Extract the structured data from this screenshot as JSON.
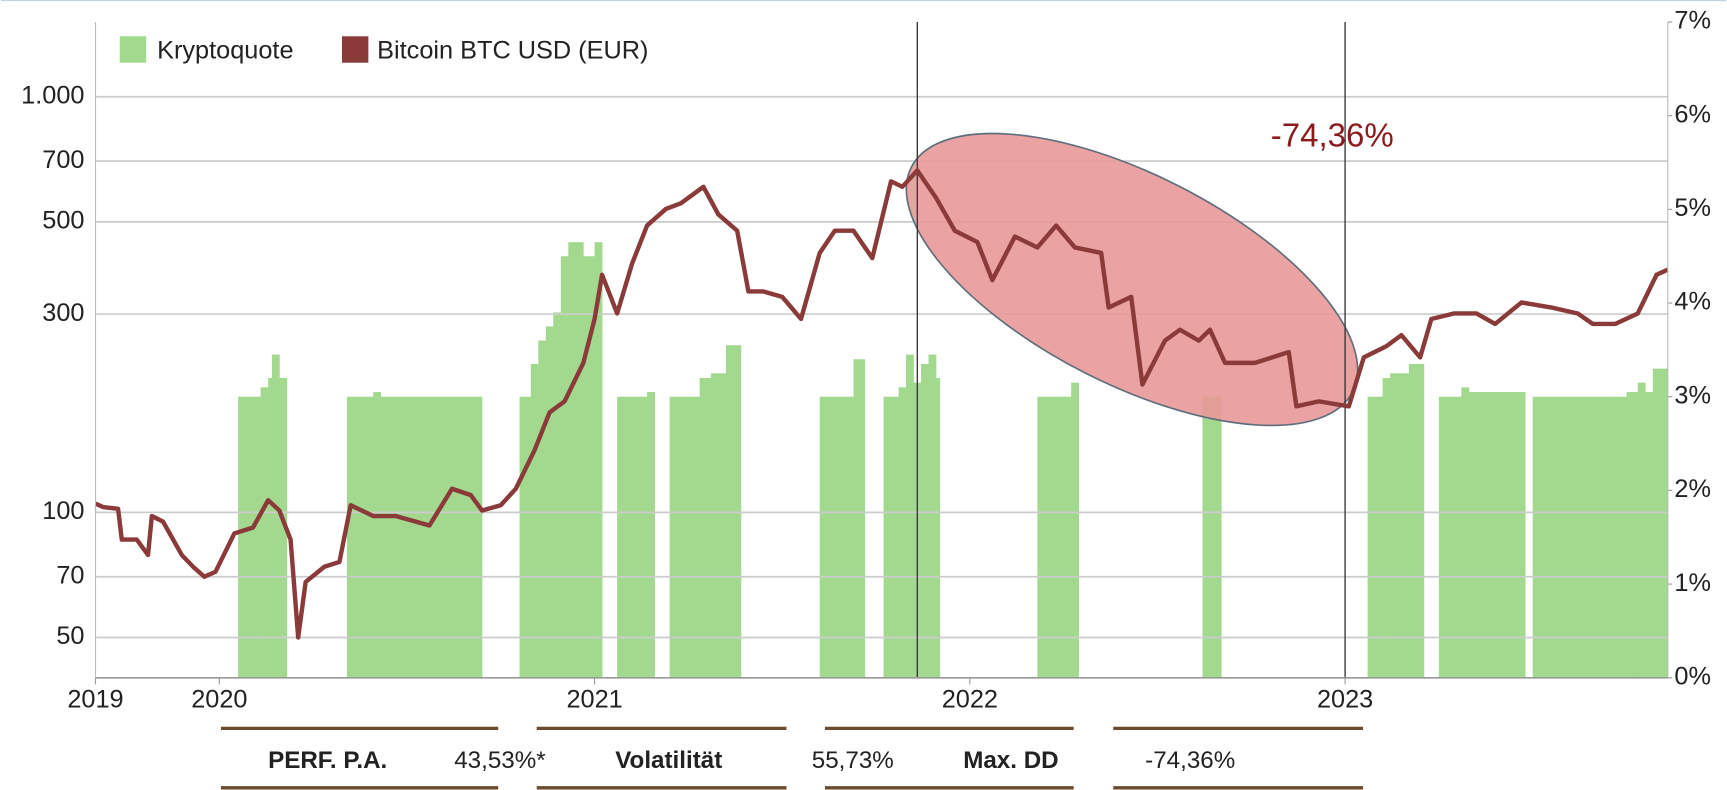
{
  "chart_data": {
    "type": "combo",
    "log": true,
    "legend": "upper left",
    "grid": true,
    "xlim": [
      2019.67,
      2023.86
    ],
    "xticks": [
      {
        "value": 2019.67,
        "label": "2019"
      },
      2020,
      2021,
      2022,
      2023
    ],
    "ylim": [
      40,
      1513
    ],
    "yticks": [
      50,
      70,
      100,
      300,
      500,
      700,
      {
        "value": 1000,
        "label": "1.000"
      }
    ],
    "y2lim": [
      0,
      7
    ],
    "y2ticks": [
      {
        "value": 0,
        "label": "0%"
      },
      {
        "value": 1,
        "label": "1%"
      },
      {
        "value": 2,
        "label": "2%"
      },
      {
        "value": 3,
        "label": "3%"
      },
      {
        "value": 4,
        "label": "4%"
      },
      {
        "value": 5,
        "label": "5%"
      },
      {
        "value": 6,
        "label": "6%"
      },
      {
        "value": 7,
        "label": "7%"
      }
    ],
    "vlines": [
      2021.86,
      2023.0
    ],
    "annotation": "-74,36%",
    "series": [
      {
        "name": "Kryptoquote",
        "type": "bar",
        "axis": "y2",
        "color": "#a2d98f",
        "bins": [
          2019.67,
          2020.05,
          2020.11,
          2020.13,
          2020.14,
          2020.16,
          2020.18,
          2020.34,
          2020.41,
          2020.43,
          2020.7,
          2020.8,
          2020.83,
          2020.85,
          2020.87,
          2020.89,
          2020.91,
          2020.93,
          2020.97,
          2021.0,
          2021.02,
          2021.06,
          2021.14,
          2021.16,
          2021.2,
          2021.28,
          2021.31,
          2021.35,
          2021.39,
          2021.6,
          2021.69,
          2021.72,
          2021.77,
          2021.81,
          2021.83,
          2021.85,
          2021.87,
          2021.89,
          2021.91,
          2021.92,
          2022.18,
          2022.27,
          2022.29,
          2022.62,
          2022.67,
          2023.06,
          2023.1,
          2023.12,
          2023.17,
          2023.21,
          2023.25,
          2023.31,
          2023.33,
          2023.48,
          2023.5,
          2023.75,
          2023.78,
          2023.8,
          2023.82,
          2023.86
        ],
        "values": [
          0,
          3.0,
          3.1,
          3.2,
          3.45,
          3.2,
          0,
          3.0,
          3.05,
          3.0,
          0,
          3.0,
          3.35,
          3.6,
          3.75,
          3.9,
          4.5,
          4.65,
          4.5,
          4.65,
          0,
          3.0,
          3.05,
          0,
          3.0,
          3.2,
          3.25,
          3.55,
          0,
          3.0,
          3.4,
          0,
          3.0,
          3.1,
          3.45,
          3.15,
          3.35,
          3.45,
          3.2,
          0,
          3.0,
          3.15,
          0,
          3.0,
          0,
          3.0,
          3.2,
          3.25,
          3.35,
          0,
          3.0,
          3.1,
          3.05,
          0,
          3.0,
          3.05,
          3.15,
          3.05,
          3.3
        ]
      },
      {
        "name": "Bitcoin BTC USD (EUR)",
        "type": "line",
        "color": "#8b3a3a",
        "x": [
          2019.67,
          2019.69,
          2019.73,
          2019.74,
          2019.78,
          2019.81,
          2019.82,
          2019.85,
          2019.9,
          2019.93,
          2019.96,
          2019.99,
          2020.04,
          2020.09,
          2020.13,
          2020.16,
          2020.19,
          2020.21,
          2020.23,
          2020.28,
          2020.32,
          2020.35,
          2020.41,
          2020.47,
          2020.56,
          2020.62,
          2020.67,
          2020.7,
          2020.75,
          2020.79,
          2020.84,
          2020.88,
          2020.92,
          2020.97,
          2021.0,
          2021.02,
          2021.06,
          2021.1,
          2021.14,
          2021.19,
          2021.23,
          2021.29,
          2021.33,
          2021.38,
          2021.41,
          2021.45,
          2021.5,
          2021.55,
          2021.6,
          2021.64,
          2021.69,
          2021.74,
          2021.79,
          2021.82,
          2021.86,
          2021.91,
          2021.96,
          2022.02,
          2022.06,
          2022.12,
          2022.18,
          2022.23,
          2022.28,
          2022.35,
          2022.37,
          2022.43,
          2022.46,
          2022.52,
          2022.56,
          2022.61,
          2022.64,
          2022.68,
          2022.76,
          2022.85,
          2022.87,
          2022.93,
          2023.01,
          2023.05,
          2023.11,
          2023.15,
          2023.2,
          2023.23,
          2023.29,
          2023.35,
          2023.4,
          2023.47,
          2023.55,
          2023.62,
          2023.66,
          2023.72,
          2023.78,
          2023.83,
          2023.86
        ],
        "values": [
          105,
          103,
          102,
          86,
          86,
          79,
          98,
          95,
          79,
          74,
          70,
          72,
          89,
          92,
          107,
          101,
          86,
          50,
          68,
          74,
          76,
          104,
          98,
          98,
          93,
          114,
          110,
          101,
          104,
          114,
          141,
          174,
          185,
          229,
          292,
          373,
          301,
          397,
          490,
          537,
          554,
          607,
          521,
          476,
          340,
          340,
          330,
          292,
          421,
          476,
          476,
          409,
          626,
          607,
          665,
          571,
          476,
          447,
          362,
          461,
          434,
          490,
          434,
          421,
          311,
          330,
          203,
          259,
          275,
          259,
          275,
          229,
          229,
          243,
          180,
          185,
          180,
          236,
          251,
          267,
          236,
          292,
          301,
          301,
          284,
          320,
          311,
          301,
          284,
          284,
          301,
          373,
          384
        ]
      }
    ]
  },
  "stats": [
    {
      "label": "PERF. P.A.",
      "value": "43,53%*"
    },
    {
      "label": "Volatilität",
      "value": "55,73%"
    },
    {
      "label": "Max. DD",
      "value": "-74,36%"
    }
  ]
}
